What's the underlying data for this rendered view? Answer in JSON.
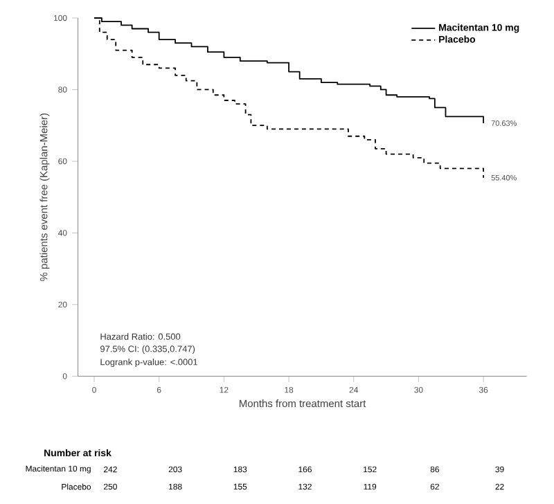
{
  "chart_data": {
    "type": "step",
    "ylabel": "% patients event free (Kaplan-Meier)",
    "xlabel": "Months from treatment start",
    "xlim": [
      -1.5,
      40
    ],
    "ylim": [
      0,
      100
    ],
    "xticks": [
      0,
      6,
      12,
      18,
      24,
      30,
      36
    ],
    "yticks": [
      0,
      20,
      40,
      60,
      80,
      100
    ],
    "legend": "top right",
    "grid": false,
    "marker": "none",
    "series": [
      {
        "name": "Macitentan 10 mg",
        "color": "#000000",
        "line_style": "solid",
        "x": [
          0,
          0.7,
          2.5,
          3.5,
          5,
          6,
          7.5,
          9,
          10.5,
          12,
          13.5,
          16,
          18,
          19,
          21,
          22.5,
          25.5,
          26.5,
          27,
          28,
          31,
          31.5,
          32.5,
          36
        ],
        "values": [
          100,
          99,
          98,
          97,
          96,
          94,
          93,
          92,
          90.5,
          89,
          88,
          87.5,
          85,
          83,
          82,
          81.5,
          81,
          80,
          78.5,
          78,
          77.5,
          75,
          72.5,
          70.63
        ],
        "value_labels": [
          null,
          null,
          null,
          null,
          null,
          null,
          null,
          null,
          null,
          null,
          null,
          null,
          null,
          null,
          null,
          null,
          null,
          null,
          null,
          null,
          null,
          null,
          null,
          "70.63%"
        ]
      },
      {
        "name": "Placebo",
        "color": "#000000",
        "line_style": "dashed",
        "x": [
          0,
          0.5,
          1.2,
          2,
          3.5,
          4.5,
          6,
          7.5,
          8.5,
          9.5,
          11,
          12,
          13,
          14,
          14.5,
          16,
          23.5,
          25,
          26,
          27,
          29.5,
          30.5,
          32,
          36
        ],
        "values": [
          100,
          96,
          94,
          91,
          89,
          87,
          86,
          84,
          82.5,
          80,
          78.5,
          77,
          76,
          73,
          70,
          69,
          67,
          66,
          63.5,
          62,
          61,
          59.5,
          58,
          55.4
        ],
        "value_labels": [
          null,
          null,
          null,
          null,
          null,
          null,
          null,
          null,
          null,
          null,
          null,
          null,
          null,
          null,
          null,
          null,
          null,
          null,
          null,
          null,
          null,
          null,
          null,
          "55.40%"
        ]
      }
    ],
    "annotations": [
      "Hazard Ratio: 0.500",
      "97.5% CI: (0.335,0.747)",
      "Logrank p-value: <.0001",
      "Number at risk",
      "Macitentan 10 mg",
      "242",
      "203",
      "183",
      "166",
      "152",
      "86",
      "39",
      "Placebo",
      "250",
      "188",
      "155",
      "132",
      "119",
      "62",
      "22"
    ]
  }
}
